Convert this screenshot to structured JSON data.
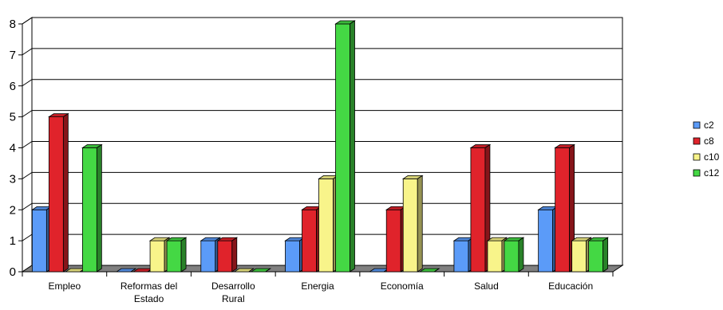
{
  "chart_data": {
    "type": "bar",
    "categories": [
      [
        "Empleo"
      ],
      [
        "Reformas del",
        "Estado"
      ],
      [
        "Desarrollo",
        "Rural"
      ],
      [
        "Energia"
      ],
      [
        "Economía"
      ],
      [
        "Salud"
      ],
      [
        "Educación"
      ]
    ],
    "series": [
      {
        "name": "c2",
        "color": "#5b9bf8",
        "values": [
          2,
          0,
          1,
          1,
          0,
          1,
          2
        ]
      },
      {
        "name": "c8",
        "color": "#e0232b",
        "values": [
          5,
          0,
          1,
          2,
          2,
          4,
          4
        ]
      },
      {
        "name": "c10",
        "color": "#f8f48a",
        "values": [
          0,
          1,
          0,
          3,
          3,
          1,
          1
        ]
      },
      {
        "name": "c12",
        "color": "#44d844",
        "values": [
          4,
          1,
          0,
          8,
          0,
          1,
          1
        ]
      }
    ],
    "yticks": [
      "0",
      "1",
      "2",
      "3",
      "4",
      "5",
      "6",
      "7",
      "8"
    ],
    "ylim": [
      0,
      8
    ],
    "grid": true,
    "legend": "right",
    "style": "3d-clustered-column"
  }
}
